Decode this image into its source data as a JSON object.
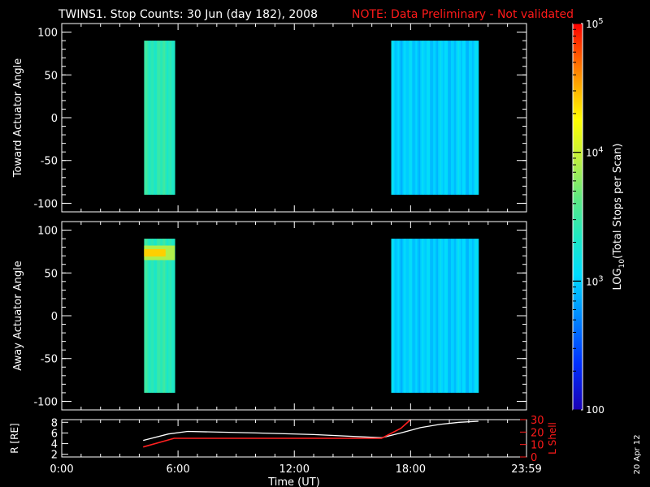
{
  "header": {
    "title": "TWINS1. Stop Counts: 30 Jun (day 182), 2008",
    "note": "NOTE: Data Preliminary - Not validated"
  },
  "footer": {
    "xlabel": "Time (UT)",
    "stamp": "20 Apr 12"
  },
  "colorbar": {
    "label": "LOG10(Total Stops per Scan)",
    "ticks": [
      "100",
      "10^3",
      "10^4",
      "10^5"
    ],
    "range_log10": [
      2,
      5
    ]
  },
  "chart_data": [
    {
      "type": "heatmap",
      "ylabel": "Toward Actuator Angle",
      "xlim_hours": [
        0,
        23.98
      ],
      "ylim": [
        -110,
        110
      ],
      "yticks": [
        "-100",
        "-50",
        "0",
        "50",
        "100"
      ],
      "xtick_labels": [
        "0:00",
        "6:00",
        "12:00",
        "18:00",
        "23:59"
      ],
      "angle_range": [
        -90,
        90
      ],
      "segments": [
        {
          "start": "4:15",
          "end": "5:50",
          "log10_counts": 3.4
        },
        {
          "start": "17:00",
          "end": "21:30",
          "log10_counts": 3.0
        }
      ]
    },
    {
      "type": "heatmap",
      "ylabel": "Away Actuator Angle",
      "xlim_hours": [
        0,
        23.98
      ],
      "ylim": [
        -110,
        110
      ],
      "yticks": [
        "-100",
        "-50",
        "0",
        "50",
        "100"
      ],
      "xtick_labels": [
        "0:00",
        "6:00",
        "12:00",
        "18:00",
        "23:59"
      ],
      "angle_range": [
        -90,
        90
      ],
      "segments": [
        {
          "start": "4:15",
          "end": "5:50",
          "log10_counts": 3.4,
          "hotspot": {
            "angle_range": [
              65,
              82
            ],
            "log10_counts": 4.4
          }
        },
        {
          "start": "17:00",
          "end": "21:30",
          "log10_counts": 3.0
        }
      ]
    },
    {
      "type": "line",
      "ylabel_left": "R [RE]",
      "ylabel_right": "L Shell",
      "yticks_left": [
        "2",
        "4",
        "6",
        "8"
      ],
      "yticks_right": [
        "0",
        "10",
        "20",
        "30"
      ],
      "ylim_left": [
        1.5,
        8.5
      ],
      "ylim_right": [
        0,
        30
      ],
      "xtick_labels": [
        "0:00",
        "6:00",
        "12:00",
        "18:00",
        "23:59"
      ],
      "series": [
        {
          "name": "R [RE]",
          "color": "#ffffff",
          "x_hours": [
            4.2,
            5.5,
            6.5,
            10,
            13,
            16.5,
            17.5,
            18.5,
            19.5,
            20.5,
            21.5
          ],
          "y": [
            4.6,
            5.8,
            6.3,
            6.0,
            5.7,
            5.1,
            6.0,
            7.0,
            7.6,
            8.0,
            8.2
          ]
        },
        {
          "name": "L Shell",
          "color": "#ff2020",
          "x_hours": [
            4.2,
            5.8,
            16.5,
            17.5,
            18.0
          ],
          "y": [
            8,
            15,
            15,
            23,
            30
          ]
        }
      ]
    }
  ]
}
